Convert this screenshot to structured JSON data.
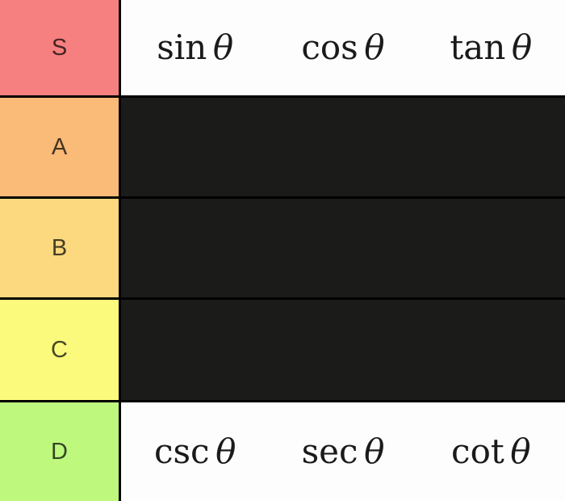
{
  "tier_list": {
    "label_text_color": "rgba(0,0,0,0.72)",
    "item_text_color": "#1a1a1a",
    "border_color": "#000000",
    "empty_row_bg": "#1b1b19",
    "filled_row_bg": "#fdfdfd",
    "rows": [
      {
        "label": "S",
        "color": "#f68080",
        "content_bg": "#fdfdfd",
        "items": [
          {
            "fn": "sin",
            "arg": "θ"
          },
          {
            "fn": "cos",
            "arg": "θ"
          },
          {
            "fn": "tan",
            "arg": "θ"
          }
        ]
      },
      {
        "label": "A",
        "color": "#faba78",
        "content_bg": "#1b1b19",
        "items": []
      },
      {
        "label": "B",
        "color": "#fcd87e",
        "content_bg": "#1b1b19",
        "items": []
      },
      {
        "label": "C",
        "color": "#fcfa7d",
        "content_bg": "#1b1b19",
        "items": []
      },
      {
        "label": "D",
        "color": "#bef97e",
        "content_bg": "#fdfdfd",
        "items": [
          {
            "fn": "csc",
            "arg": "θ"
          },
          {
            "fn": "sec",
            "arg": "θ"
          },
          {
            "fn": "cot",
            "arg": "θ"
          }
        ]
      }
    ]
  }
}
